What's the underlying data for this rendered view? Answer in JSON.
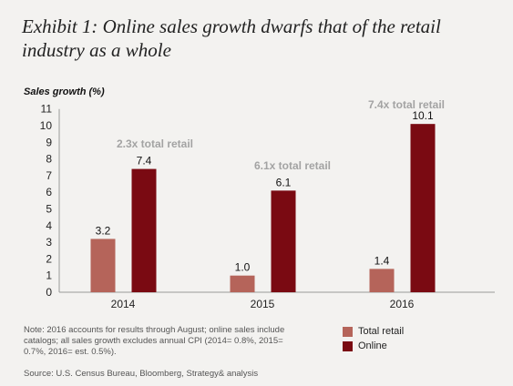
{
  "title": "Exhibit 1: Online sales growth dwarfs that of the retail industry as a whole",
  "note": "Note: 2016 accounts for results through August; online sales include catalogs; all sales growth excludes annual CPI (2014= 0.8%, 2015= 0.7%, 2016= est. 0.5%).",
  "source": "Source: U.S. Census Bureau, Bloomberg, Strategy& analysis",
  "colors": {
    "total_retail": "#b5645a",
    "online": "#7a0a12",
    "annotation": "#a3a3a3",
    "axis": "#999999"
  },
  "chart_data": {
    "type": "bar",
    "ylabel": "Sales growth (%)",
    "xlabel": "",
    "ylim": [
      0,
      11
    ],
    "yticks": [
      0,
      1,
      2,
      3,
      4,
      5,
      6,
      7,
      8,
      9,
      10,
      11
    ],
    "grid": false,
    "legend_position": "bottom-right",
    "categories": [
      "2014",
      "2015",
      "2016"
    ],
    "series": [
      {
        "name": "Total retail",
        "values": [
          3.2,
          1.0,
          1.4
        ],
        "labels": [
          "3.2",
          "1.0",
          "1.4"
        ]
      },
      {
        "name": "Online",
        "values": [
          7.4,
          6.1,
          10.1
        ],
        "labels": [
          "7.4",
          "6.1",
          "10.1"
        ]
      }
    ],
    "annotations": [
      "2.3x total retail",
      "6.1x total retail",
      "7.4x total retail"
    ]
  }
}
